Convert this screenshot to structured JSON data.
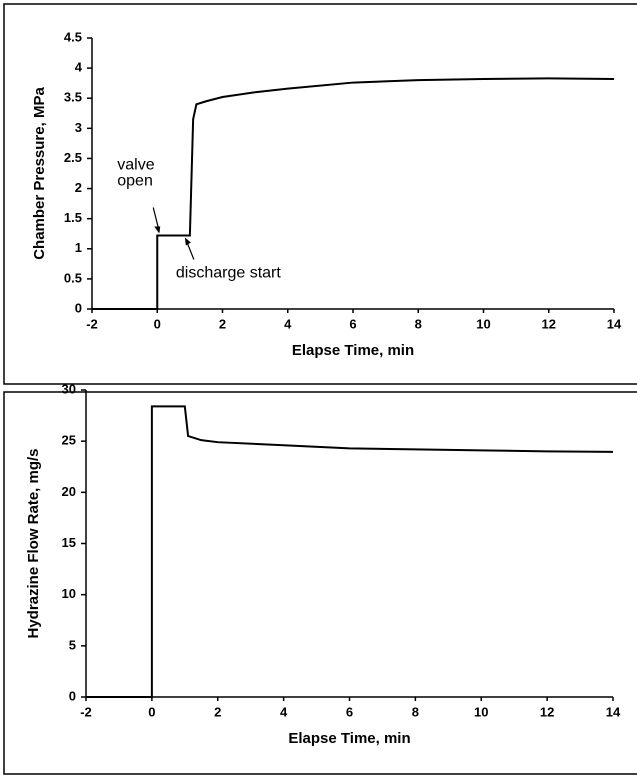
{
  "chart_data": [
    {
      "type": "line",
      "xlabel": "Elapse Time, min",
      "ylabel": "Chamber Pressure, MPa",
      "x": [
        -2,
        0,
        0,
        1,
        1.1,
        1.2,
        1.5,
        2,
        3,
        4,
        6,
        8,
        10,
        12,
        14
      ],
      "series": [
        {
          "color": "#000000",
          "values": [
            0,
            0,
            1.22,
            1.22,
            3.15,
            3.4,
            3.45,
            3.52,
            3.6,
            3.66,
            3.76,
            3.8,
            3.82,
            3.83,
            3.82
          ]
        }
      ],
      "xlim": [
        -2,
        14
      ],
      "xticks": [
        -2,
        0,
        2,
        4,
        6,
        8,
        10,
        12,
        14
      ],
      "ylim": [
        0,
        4.5
      ],
      "yticks": [
        0,
        0.5,
        1,
        1.5,
        2,
        2.5,
        3,
        3.5,
        4,
        4.5
      ],
      "annotations": [
        {
          "lines": [
            "valve",
            "open"
          ]
        },
        {
          "lines": [
            "discharge start"
          ]
        }
      ]
    },
    {
      "type": "line",
      "xlabel": "Elapse Time, min",
      "ylabel": "Hydrazine Flow Rate, mg/s",
      "x": [
        -2,
        0,
        0,
        1,
        1.1,
        1.5,
        2,
        4,
        6,
        8,
        10,
        12,
        14
      ],
      "series": [
        {
          "color": "#000000",
          "values": [
            0,
            0,
            28.4,
            28.4,
            25.5,
            25.1,
            24.9,
            24.6,
            24.3,
            24.2,
            24.1,
            24.0,
            23.95
          ]
        }
      ],
      "xlim": [
        -2,
        14
      ],
      "xticks": [
        -2,
        0,
        2,
        4,
        6,
        8,
        10,
        12,
        14
      ],
      "ylim": [
        0,
        30
      ],
      "yticks": [
        0,
        5,
        10,
        15,
        20,
        25,
        30
      ]
    }
  ]
}
